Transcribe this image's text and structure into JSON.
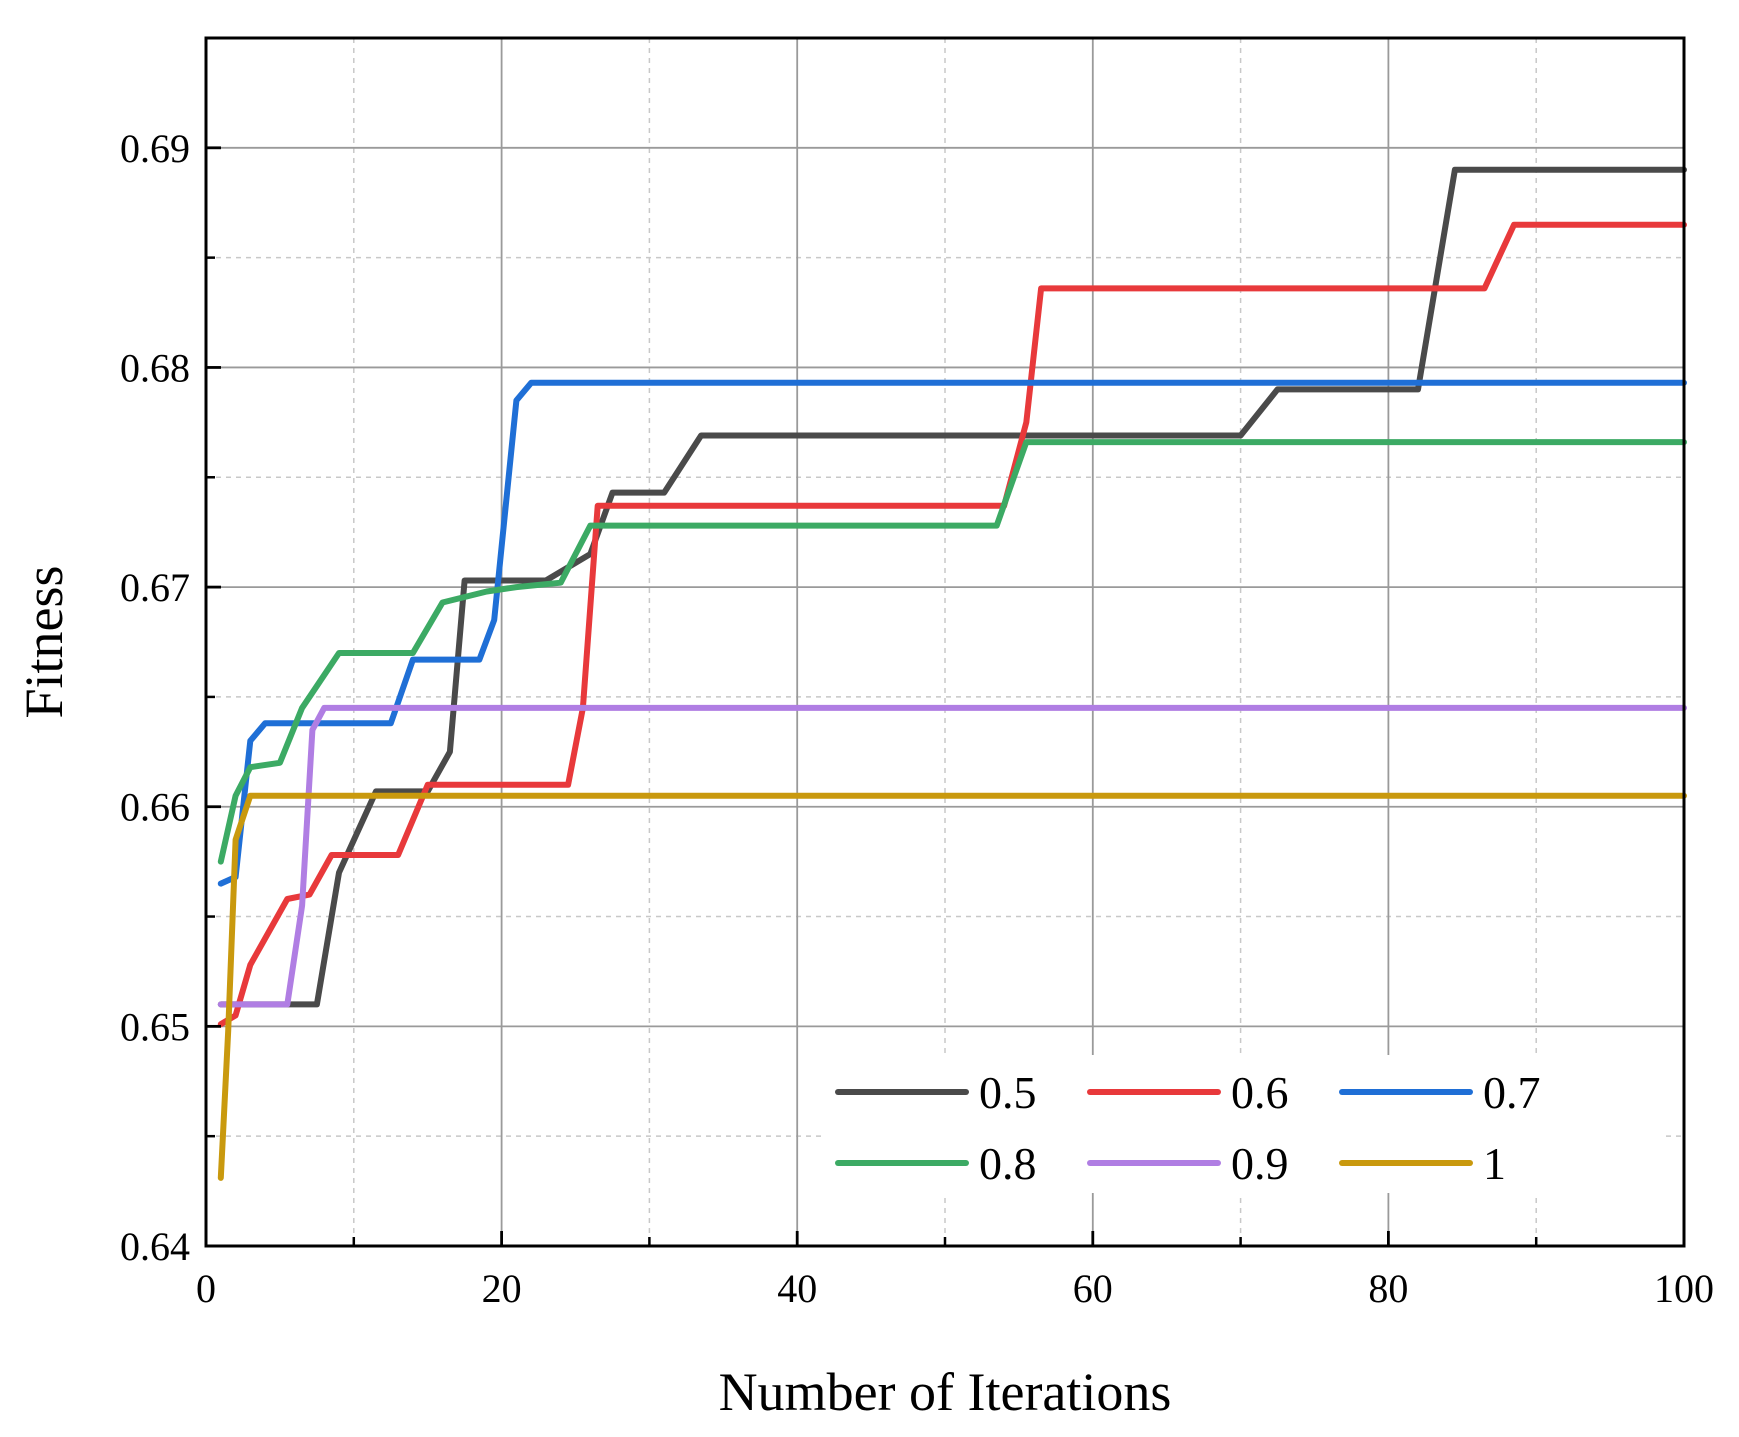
{
  "chart_data": {
    "type": "line",
    "title": "",
    "xlabel": "Number of Iterations",
    "ylabel": "Fitness",
    "xlim": [
      0,
      100
    ],
    "ylim": [
      0.64,
      0.695
    ],
    "xticks": [
      0,
      20,
      40,
      60,
      80,
      100
    ],
    "yticks": [
      0.64,
      0.65,
      0.66,
      0.67,
      0.68,
      0.69
    ],
    "xtick_labels": [
      "0",
      "20",
      "40",
      "60",
      "80",
      "100"
    ],
    "ytick_labels": [
      "0.64",
      "0.65",
      "0.66",
      "0.67",
      "0.68",
      "0.69"
    ],
    "grid": true,
    "legend_position": "bottom-right",
    "series": [
      {
        "name": "0.5",
        "color": "#4a4a4a",
        "points": [
          [
            1,
            0.651
          ],
          [
            7.5,
            0.651
          ],
          [
            9,
            0.657
          ],
          [
            11.5,
            0.6607
          ],
          [
            15,
            0.6607
          ],
          [
            16.5,
            0.6625
          ],
          [
            17.5,
            0.6703
          ],
          [
            23,
            0.6703
          ],
          [
            26,
            0.6715
          ],
          [
            27.5,
            0.6743
          ],
          [
            31,
            0.6743
          ],
          [
            33.5,
            0.6769
          ],
          [
            70,
            0.6769
          ],
          [
            72.5,
            0.679
          ],
          [
            82,
            0.679
          ],
          [
            84.5,
            0.689
          ],
          [
            100,
            0.689
          ]
        ]
      },
      {
        "name": "0.6",
        "color": "#e8393b",
        "points": [
          [
            1,
            0.6501
          ],
          [
            2,
            0.6505
          ],
          [
            3,
            0.6528
          ],
          [
            4,
            0.654
          ],
          [
            5.5,
            0.6558
          ],
          [
            7,
            0.656
          ],
          [
            8.5,
            0.6578
          ],
          [
            13,
            0.6578
          ],
          [
            15,
            0.661
          ],
          [
            24.5,
            0.661
          ],
          [
            25.5,
            0.6645
          ],
          [
            26.5,
            0.6737
          ],
          [
            54,
            0.6737
          ],
          [
            55.5,
            0.6775
          ],
          [
            56.5,
            0.6836
          ],
          [
            86.5,
            0.6836
          ],
          [
            88.5,
            0.6865
          ],
          [
            100,
            0.6865
          ]
        ]
      },
      {
        "name": "0.7",
        "color": "#1f6fd6",
        "points": [
          [
            1,
            0.6565
          ],
          [
            2,
            0.6568
          ],
          [
            3,
            0.663
          ],
          [
            4,
            0.6638
          ],
          [
            12.5,
            0.6638
          ],
          [
            14,
            0.6667
          ],
          [
            18.5,
            0.6667
          ],
          [
            19.5,
            0.6685
          ],
          [
            21,
            0.6785
          ],
          [
            22,
            0.6793
          ],
          [
            100,
            0.6793
          ]
        ]
      },
      {
        "name": "0.8",
        "color": "#3caa64",
        "points": [
          [
            1,
            0.6575
          ],
          [
            2,
            0.6605
          ],
          [
            3,
            0.6618
          ],
          [
            5,
            0.662
          ],
          [
            6.5,
            0.6645
          ],
          [
            7.5,
            0.6655
          ],
          [
            9,
            0.667
          ],
          [
            14,
            0.667
          ],
          [
            16,
            0.6693
          ],
          [
            19,
            0.6698
          ],
          [
            21,
            0.67
          ],
          [
            24,
            0.6702
          ],
          [
            26,
            0.6728
          ],
          [
            53.5,
            0.6728
          ],
          [
            55.5,
            0.6766
          ],
          [
            100,
            0.6766
          ]
        ]
      },
      {
        "name": "0.9",
        "color": "#b07ee3",
        "points": [
          [
            1,
            0.651
          ],
          [
            5.5,
            0.651
          ],
          [
            6.5,
            0.6555
          ],
          [
            7.2,
            0.6635
          ],
          [
            8,
            0.6645
          ],
          [
            100,
            0.6645
          ]
        ]
      },
      {
        "name": "1",
        "color": "#c9990e",
        "points": [
          [
            1,
            0.6431
          ],
          [
            1.5,
            0.6498
          ],
          [
            2,
            0.6585
          ],
          [
            3,
            0.6605
          ],
          [
            100,
            0.6605
          ]
        ]
      }
    ]
  }
}
